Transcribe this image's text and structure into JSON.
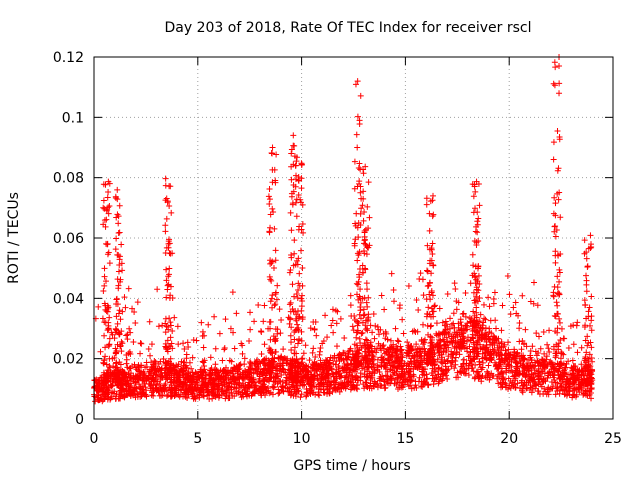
{
  "chart_data": {
    "type": "scatter",
    "title": "Day 203 of 2018, Rate Of TEC Index for receiver rscl",
    "xlabel": "GPS time / hours",
    "ylabel": "ROTI / TECUs",
    "xlim": [
      0,
      25
    ],
    "ylim": [
      0,
      0.12
    ],
    "x_ticks": [
      0,
      5,
      10,
      15,
      20,
      25
    ],
    "y_ticks": [
      0,
      0.02,
      0.04,
      0.06,
      0.08,
      0.1,
      0.12
    ],
    "x_tick_labels": [
      "0",
      "5",
      "10",
      "15",
      "20",
      "25"
    ],
    "y_tick_labels": [
      "0",
      "0.02",
      "0.04",
      "0.06",
      "0.08",
      "0.1",
      "0.12"
    ],
    "grid": true,
    "marker": "+",
    "marker_color": "#ff0000",
    "time_span_hours": [
      0,
      24
    ],
    "baseline": [
      {
        "x": 0.0,
        "y": 0.009
      },
      {
        "x": 1.0,
        "y": 0.011
      },
      {
        "x": 2.0,
        "y": 0.012
      },
      {
        "x": 3.0,
        "y": 0.013
      },
      {
        "x": 4.0,
        "y": 0.012
      },
      {
        "x": 5.0,
        "y": 0.011
      },
      {
        "x": 6.0,
        "y": 0.011
      },
      {
        "x": 7.0,
        "y": 0.012
      },
      {
        "x": 8.0,
        "y": 0.013
      },
      {
        "x": 9.0,
        "y": 0.014
      },
      {
        "x": 10.0,
        "y": 0.012
      },
      {
        "x": 11.0,
        "y": 0.013
      },
      {
        "x": 12.0,
        "y": 0.015
      },
      {
        "x": 13.0,
        "y": 0.017
      },
      {
        "x": 14.0,
        "y": 0.017
      },
      {
        "x": 15.0,
        "y": 0.016
      },
      {
        "x": 16.0,
        "y": 0.018
      },
      {
        "x": 17.0,
        "y": 0.021
      },
      {
        "x": 18.0,
        "y": 0.023
      },
      {
        "x": 19.0,
        "y": 0.02
      },
      {
        "x": 20.0,
        "y": 0.016
      },
      {
        "x": 21.0,
        "y": 0.014
      },
      {
        "x": 22.0,
        "y": 0.013
      },
      {
        "x": 23.0,
        "y": 0.012
      },
      {
        "x": 24.0,
        "y": 0.011
      }
    ],
    "spikes": [
      {
        "x": 0.6,
        "peak": 0.083
      },
      {
        "x": 1.2,
        "peak": 0.079
      },
      {
        "x": 3.6,
        "peak": 0.085
      },
      {
        "x": 8.6,
        "peak": 0.09
      },
      {
        "x": 9.6,
        "peak": 0.094
      },
      {
        "x": 9.9,
        "peak": 0.087
      },
      {
        "x": 12.7,
        "peak": 0.112
      },
      {
        "x": 13.1,
        "peak": 0.085
      },
      {
        "x": 16.2,
        "peak": 0.074
      },
      {
        "x": 18.4,
        "peak": 0.079
      },
      {
        "x": 22.3,
        "peak": 0.12
      },
      {
        "x": 23.8,
        "peak": 0.061
      }
    ],
    "notable_points": [
      {
        "x": 12.7,
        "y": 0.112
      },
      {
        "x": 22.4,
        "y": 0.12
      },
      {
        "x": 22.4,
        "y": 0.117
      },
      {
        "x": 22.4,
        "y": 0.108
      },
      {
        "x": 9.6,
        "y": 0.094
      },
      {
        "x": 8.6,
        "y": 0.09
      }
    ]
  }
}
